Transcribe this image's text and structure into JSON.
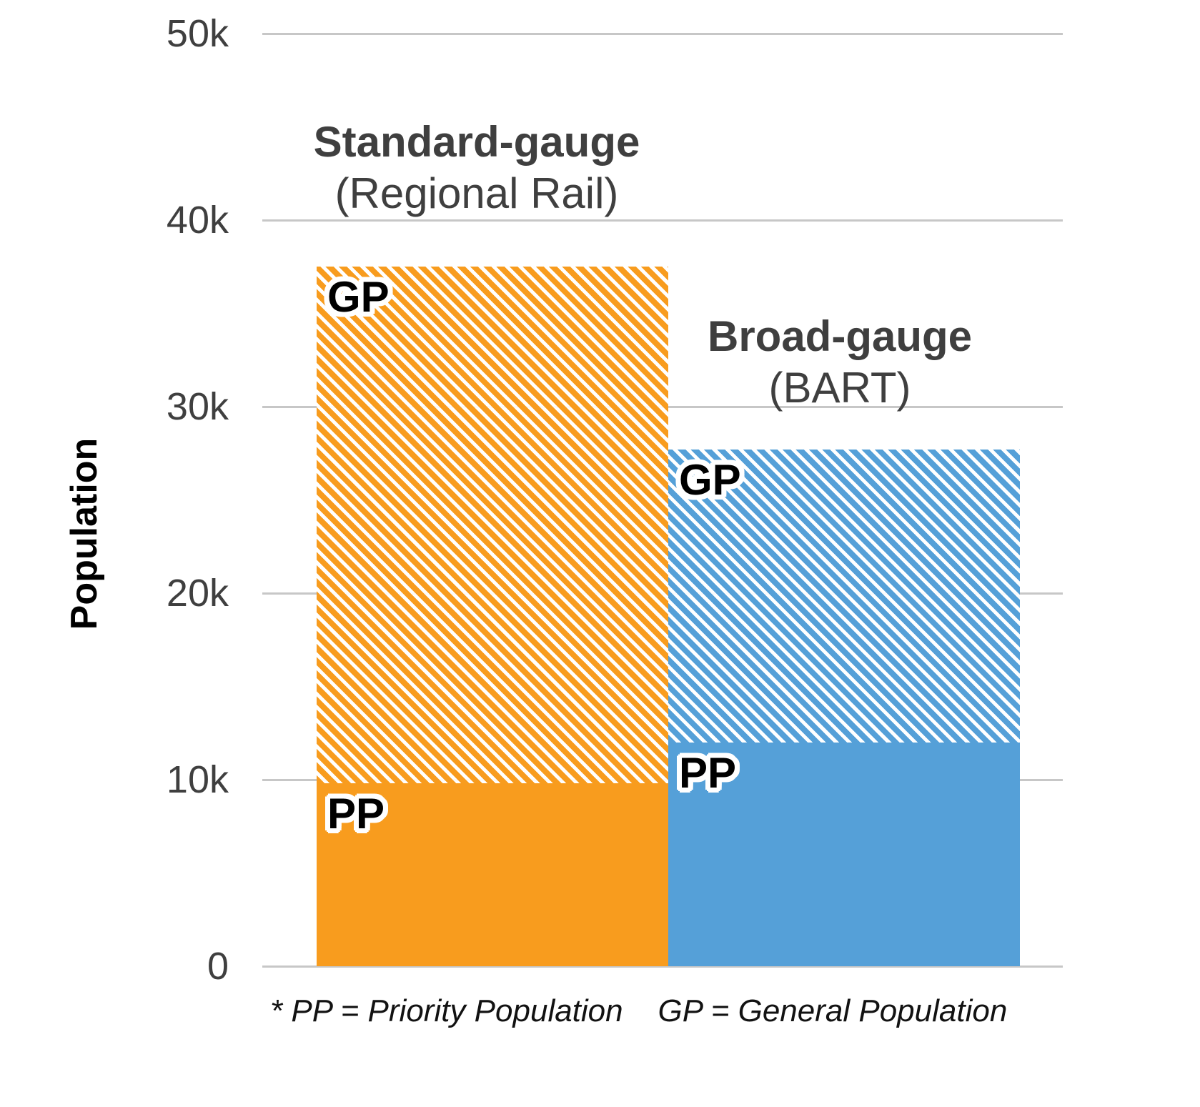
{
  "chart_data": {
    "type": "bar",
    "stacked": true,
    "ylabel": "Population",
    "ylim": [
      0,
      50000
    ],
    "gridlines": true,
    "yticks": [
      {
        "label": "50k",
        "value": 50000
      },
      {
        "label": "40k",
        "value": 40000
      },
      {
        "label": "30k",
        "value": 30000
      },
      {
        "label": "20k",
        "value": 20000
      },
      {
        "label": "10k",
        "value": 10000
      },
      {
        "label": "0",
        "value": 0
      }
    ],
    "segment_labels": {
      "gp": "GP",
      "pp": "PP"
    },
    "bars": [
      {
        "id": "standard-gauge",
        "title_line1": "Standard-gauge",
        "title_line2": "(Regional Rail)",
        "color": "#F89C1E",
        "segments": {
          "pp": 9800,
          "gp": 27700
        },
        "total": 37500
      },
      {
        "id": "broad-gauge",
        "title_line1": "Broad-gauge",
        "title_line2": "(BART)",
        "color": "#55A0D8",
        "segments": {
          "pp": 12000,
          "gp": 15700
        },
        "total": 27700
      }
    ],
    "footnote": "* PP = Priority Population    GP = General Population"
  }
}
